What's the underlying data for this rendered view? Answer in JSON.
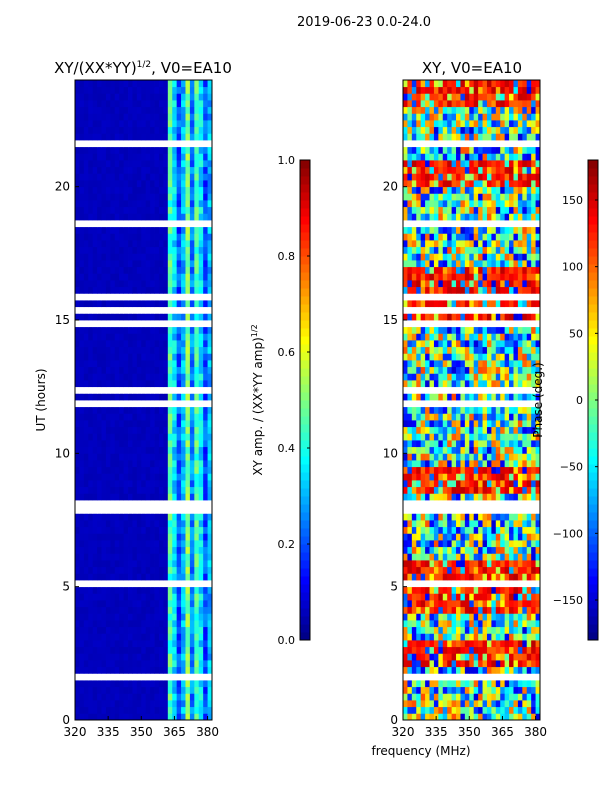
{
  "figure": {
    "suptitle": "2019-06-23 0.0-24.0",
    "xlabel_shared": "frequency (MHz)"
  },
  "chart_data": [
    {
      "type": "heatmap",
      "title": "XY/(XX*YY)",
      "title_sup": "1/2",
      "title_suffix": ", V0=EA10",
      "ylabel": "UT (hours)",
      "xlim": [
        320,
        382
      ],
      "ylim": [
        0,
        24
      ],
      "xticks": [
        320,
        335,
        350,
        365,
        380
      ],
      "yticks": [
        0,
        5,
        10,
        15,
        20
      ],
      "colorbar": {
        "label": "XY amp. / (XX*YY amp)",
        "label_sup": "1/2",
        "range": [
          0.0,
          1.0
        ],
        "ticks": [
          0.0,
          0.2,
          0.4,
          0.6,
          0.8,
          1.0
        ],
        "tick_labels": [
          "0.0",
          "0.2",
          "0.4",
          "0.6",
          "0.8",
          "1.0"
        ]
      },
      "description": "normalized cross-correlation amplitude; mostly low (~0.05) below 363 MHz, 0.2-0.5 in 363-382 MHz band",
      "low_band_level": 0.05,
      "high_band_start": 363,
      "high_band_levels": [
        0.3,
        0.5,
        0.25,
        0.45,
        0.35,
        0.2
      ]
    },
    {
      "type": "heatmap",
      "title": "XY, V0=EA10",
      "ylabel": "",
      "xlim": [
        320,
        382
      ],
      "ylim": [
        0,
        24
      ],
      "xticks": [
        320,
        335,
        350,
        365,
        380
      ],
      "yticks": [
        0,
        5,
        10,
        15,
        20
      ],
      "colorbar": {
        "label": "Phase (deg.)",
        "range": [
          -180,
          180
        ],
        "ticks": [
          -150,
          -100,
          -50,
          0,
          50,
          100,
          150
        ],
        "tick_labels": [
          "−150",
          "−100",
          "−50",
          "0",
          "50",
          "100",
          "150"
        ]
      },
      "description": "XY phase in degrees, noisy mix across full range with bands of ~+120 deg near 2-3 h, 4-6 h, 9 h, 20-21 h"
    }
  ]
}
